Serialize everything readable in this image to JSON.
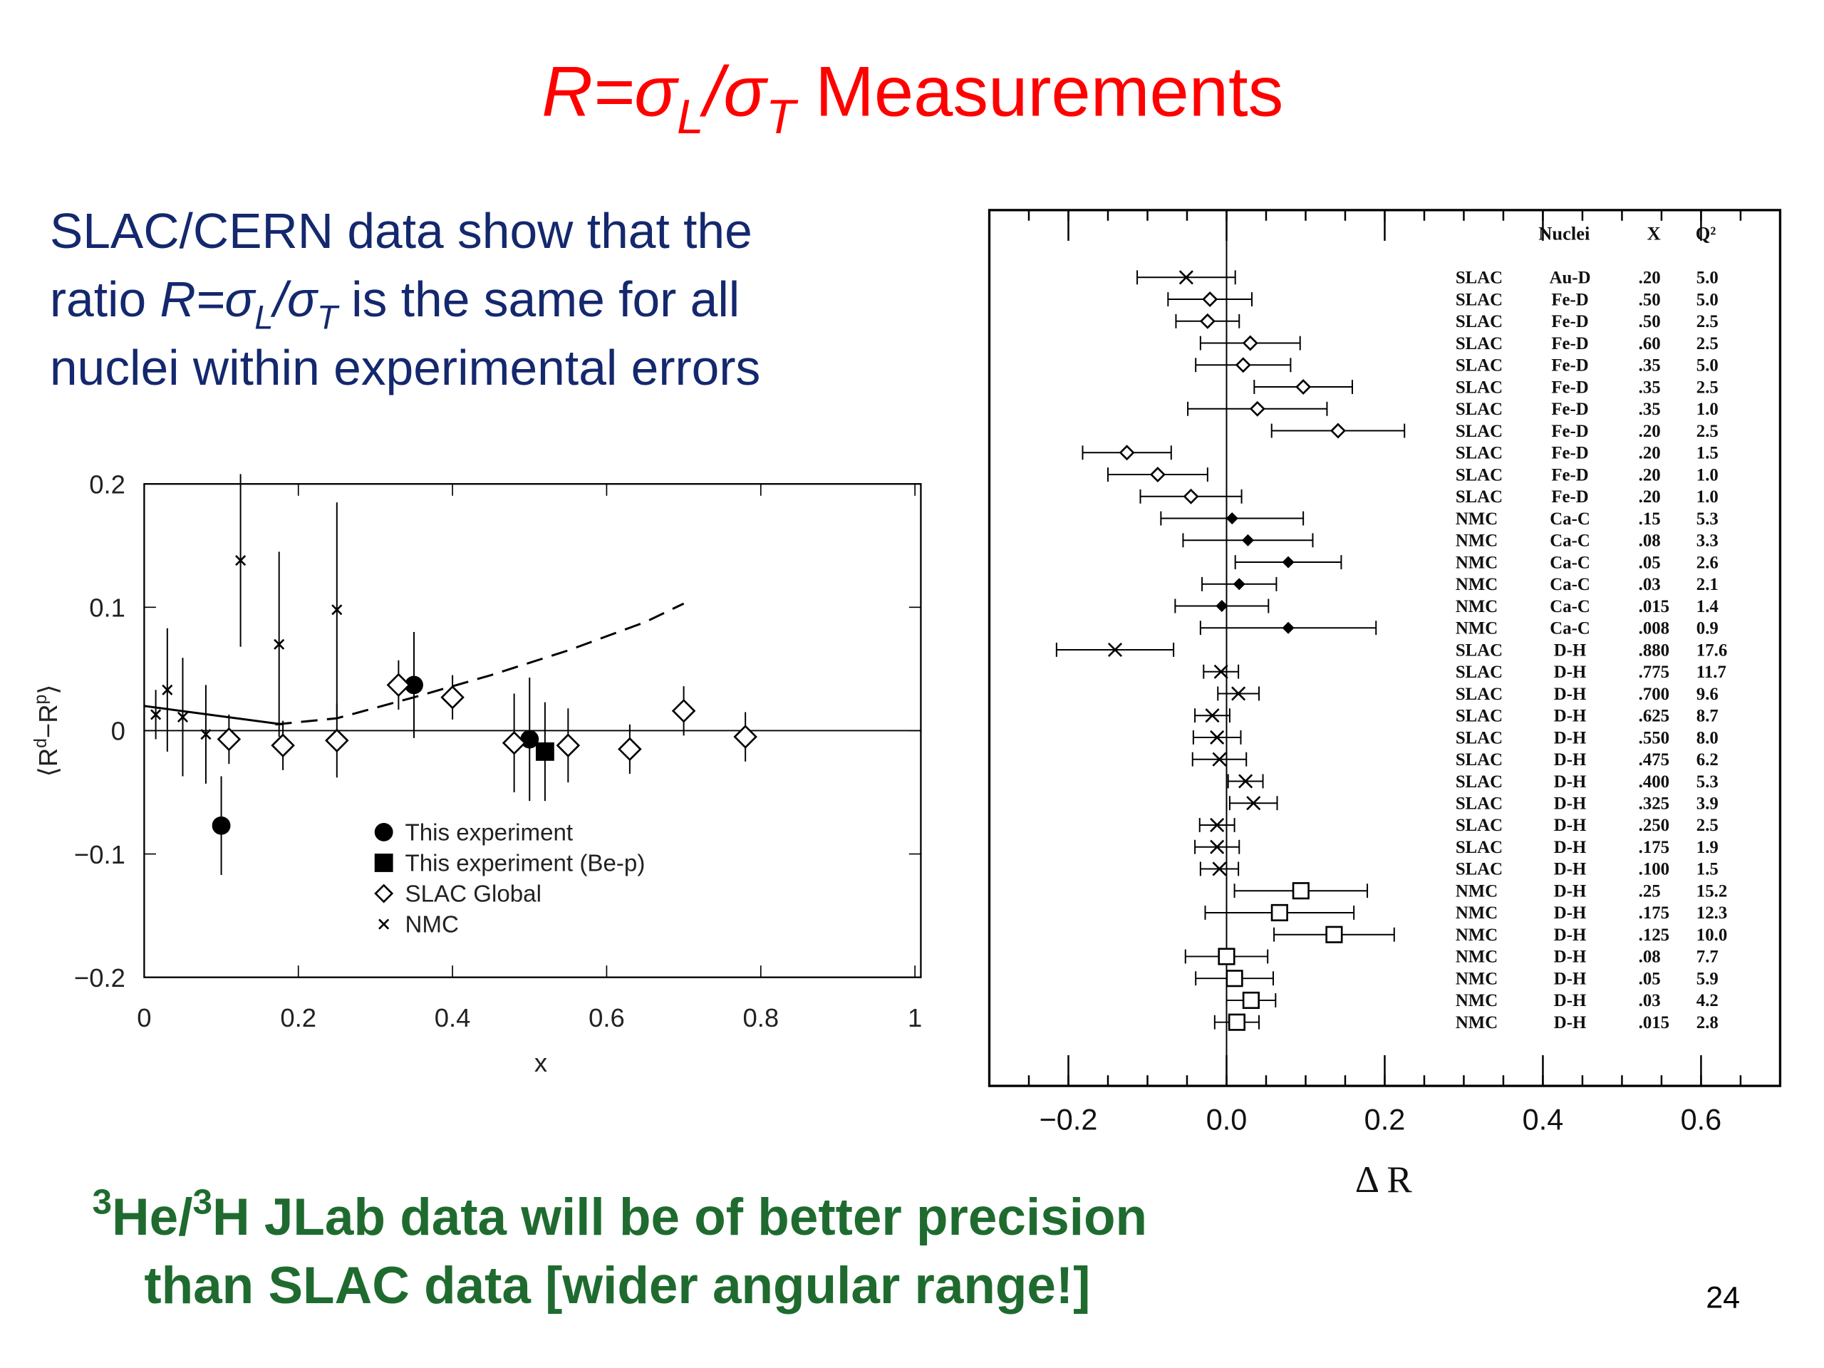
{
  "slide": {
    "title": [
      {
        "text": "R=σ",
        "italic": true
      },
      {
        "text": "L",
        "italic": true,
        "sub": true
      },
      {
        "text": "/σ",
        "italic": true
      },
      {
        "text": "T",
        "italic": true,
        "sub": true
      },
      {
        "text": " Measurements"
      }
    ],
    "body": [
      [
        {
          "text": "SLAC/CERN data show that the"
        }
      ],
      [
        {
          "text": "ratio "
        },
        {
          "text": "R=σ",
          "italic": true
        },
        {
          "text": "L",
          "italic": true,
          "sub": true
        },
        {
          "text": "/σ",
          "italic": true
        },
        {
          "text": "T",
          "italic": true,
          "sub": true
        },
        {
          "text": " is the same for all"
        }
      ],
      [
        {
          "text": "nuclei within experimental errors"
        }
      ]
    ],
    "note": [
      [
        {
          "text": "3",
          "sup": true
        },
        {
          "text": "He/"
        },
        {
          "text": "3",
          "sup": true
        },
        {
          "text": "H JLab data will be of better precision"
        }
      ],
      [
        {
          "text": "than SLAC data [wider angular range!]"
        }
      ]
    ],
    "page_number": "24"
  },
  "chart_data": [
    {
      "type": "scatter",
      "xlabel": [
        {
          "text": "x"
        }
      ],
      "ylabel": [
        {
          "text": "⟨R"
        },
        {
          "text": "d",
          "sup": true
        },
        {
          "text": "−R"
        },
        {
          "text": "p",
          "sup": true
        },
        {
          "text": "⟩"
        }
      ],
      "xlim": [
        0,
        1
      ],
      "ylim": [
        -0.2,
        0.2
      ],
      "xticks": [
        0,
        0.2,
        0.4,
        0.6,
        0.8,
        1
      ],
      "yticks": [
        {
          "value": -0.2,
          "label": "−0.2"
        },
        {
          "value": -0.1,
          "label": "−0.1"
        },
        0,
        0.1,
        0.2
      ],
      "legend": "lower-center",
      "series": [
        {
          "name": "This experiment",
          "marker": "circle",
          "color": "#000000",
          "x": [
            0.1,
            0.35,
            0.5
          ],
          "values": [
            -0.077,
            0.037,
            -0.007
          ],
          "errors": [
            0.04,
            0.043,
            0.05
          ]
        },
        {
          "name": "This experiment (Be-p)",
          "marker": "square",
          "color": "#000000",
          "x": [
            0.52
          ],
          "values": [
            -0.017
          ],
          "errors": [
            0.04
          ]
        },
        {
          "name": "SLAC Global",
          "marker": "diamond",
          "color": "#000000",
          "x": [
            0.11,
            0.18,
            0.25,
            0.33,
            0.4,
            0.48,
            0.55,
            0.63,
            0.7,
            0.78
          ],
          "values": [
            -0.007,
            -0.012,
            -0.008,
            0.037,
            0.027,
            -0.01,
            -0.012,
            -0.015,
            0.016,
            -0.005
          ],
          "errors": [
            0.02,
            0.02,
            0.03,
            0.02,
            0.018,
            0.04,
            0.03,
            0.02,
            0.02,
            0.02
          ]
        },
        {
          "name": "NMC",
          "marker": "cross",
          "color": "#000000",
          "x": [
            0.015,
            0.03,
            0.05,
            0.08,
            0.125,
            0.175,
            0.25
          ],
          "values": [
            0.013,
            0.033,
            0.011,
            -0.003,
            0.138,
            0.07,
            0.098
          ],
          "errors": [
            0.02,
            0.05,
            0.048,
            0.04,
            0.07,
            0.075,
            0.087
          ]
        }
      ],
      "curves": [
        {
          "dashed": false,
          "x": [
            0,
            0.18
          ],
          "values": [
            0.02,
            0.005
          ]
        },
        {
          "dashed": true,
          "x": [
            0.17,
            0.25,
            0.35,
            0.45,
            0.55,
            0.65,
            0.7
          ],
          "values": [
            0.005,
            0.01,
            0.027,
            0.045,
            0.065,
            0.088,
            0.103
          ]
        }
      ]
    },
    {
      "type": "errorbar",
      "xlabel": "Δ R",
      "xlim": [
        -0.3,
        0.7
      ],
      "xticks": [
        {
          "value": -0.2,
          "label": "−0.2"
        },
        {
          "value": 0,
          "label": "0.0"
        },
        0.2,
        0.4,
        0.6
      ],
      "columns": [
        "Nuclei",
        "X",
        "Q²"
      ],
      "rows": [
        {
          "lab": "SLAC",
          "nuclei": "Au-D",
          "x": ".20",
          "q2": "5.0",
          "value": -0.051,
          "error": 0.062,
          "marker": "x"
        },
        {
          "lab": "SLAC",
          "nuclei": "Fe-D",
          "x": ".50",
          "q2": "5.0",
          "value": -0.021,
          "error": 0.053,
          "marker": "diamond"
        },
        {
          "lab": "SLAC",
          "nuclei": "Fe-D",
          "x": ".50",
          "q2": "2.5",
          "value": -0.024,
          "error": 0.04,
          "marker": "diamond"
        },
        {
          "lab": "SLAC",
          "nuclei": "Fe-D",
          "x": ".60",
          "q2": "2.5",
          "value": 0.03,
          "error": 0.063,
          "marker": "diamond"
        },
        {
          "lab": "SLAC",
          "nuclei": "Fe-D",
          "x": ".35",
          "q2": "5.0",
          "value": 0.021,
          "error": 0.06,
          "marker": "diamond"
        },
        {
          "lab": "SLAC",
          "nuclei": "Fe-D",
          "x": ".35",
          "q2": "2.5",
          "value": 0.097,
          "error": 0.062,
          "marker": "diamond"
        },
        {
          "lab": "SLAC",
          "nuclei": "Fe-D",
          "x": ".35",
          "q2": "1.0",
          "value": 0.039,
          "error": 0.088,
          "marker": "diamond"
        },
        {
          "lab": "SLAC",
          "nuclei": "Fe-D",
          "x": ".20",
          "q2": "2.5",
          "value": 0.141,
          "error": 0.084,
          "marker": "diamond"
        },
        {
          "lab": "SLAC",
          "nuclei": "Fe-D",
          "x": ".20",
          "q2": "1.5",
          "value": -0.126,
          "error": 0.056,
          "marker": "diamond"
        },
        {
          "lab": "SLAC",
          "nuclei": "Fe-D",
          "x": ".20",
          "q2": "1.0",
          "value": -0.087,
          "error": 0.063,
          "marker": "diamond"
        },
        {
          "lab": "SLAC",
          "nuclei": "Fe-D",
          "x": ".20",
          "q2": "1.0",
          "value": -0.045,
          "error": 0.064,
          "marker": "diamond"
        },
        {
          "lab": "NMC",
          "nuclei": "Ca-C",
          "x": ".15",
          "q2": "5.3",
          "value": 0.007,
          "error": 0.09,
          "marker": "dot"
        },
        {
          "lab": "NMC",
          "nuclei": "Ca-C",
          "x": ".08",
          "q2": "3.3",
          "value": 0.027,
          "error": 0.082,
          "marker": "dot"
        },
        {
          "lab": "NMC",
          "nuclei": "Ca-C",
          "x": ".05",
          "q2": "2.6",
          "value": 0.078,
          "error": 0.067,
          "marker": "dot"
        },
        {
          "lab": "NMC",
          "nuclei": "Ca-C",
          "x": ".03",
          "q2": "2.1",
          "value": 0.016,
          "error": 0.047,
          "marker": "dot"
        },
        {
          "lab": "NMC",
          "nuclei": "Ca-C",
          "x": ".015",
          "q2": "1.4",
          "value": -0.006,
          "error": 0.059,
          "marker": "dot"
        },
        {
          "lab": "NMC",
          "nuclei": "Ca-C",
          "x": ".008",
          "q2": "0.9",
          "value": 0.078,
          "error": 0.111,
          "marker": "dot"
        },
        {
          "lab": "SLAC",
          "nuclei": "D-H",
          "x": ".880",
          "q2": "17.6",
          "value": -0.141,
          "error": 0.074,
          "marker": "x"
        },
        {
          "lab": "SLAC",
          "nuclei": "D-H",
          "x": ".775",
          "q2": "11.7",
          "value": -0.007,
          "error": 0.022,
          "marker": "x"
        },
        {
          "lab": "SLAC",
          "nuclei": "D-H",
          "x": ".700",
          "q2": "9.6",
          "value": 0.015,
          "error": 0.026,
          "marker": "x"
        },
        {
          "lab": "SLAC",
          "nuclei": "D-H",
          "x": ".625",
          "q2": "8.7",
          "value": -0.018,
          "error": 0.022,
          "marker": "x"
        },
        {
          "lab": "SLAC",
          "nuclei": "D-H",
          "x": ".550",
          "q2": "8.0",
          "value": -0.012,
          "error": 0.03,
          "marker": "x"
        },
        {
          "lab": "SLAC",
          "nuclei": "D-H",
          "x": ".475",
          "q2": "6.2",
          "value": -0.009,
          "error": 0.034,
          "marker": "x"
        },
        {
          "lab": "SLAC",
          "nuclei": "D-H",
          "x": ".400",
          "q2": "5.3",
          "value": 0.024,
          "error": 0.022,
          "marker": "x"
        },
        {
          "lab": "SLAC",
          "nuclei": "D-H",
          "x": ".325",
          "q2": "3.9",
          "value": 0.034,
          "error": 0.03,
          "marker": "x"
        },
        {
          "lab": "SLAC",
          "nuclei": "D-H",
          "x": ".250",
          "q2": "2.5",
          "value": -0.012,
          "error": 0.022,
          "marker": "x"
        },
        {
          "lab": "SLAC",
          "nuclei": "D-H",
          "x": ".175",
          "q2": "1.9",
          "value": -0.012,
          "error": 0.028,
          "marker": "x"
        },
        {
          "lab": "SLAC",
          "nuclei": "D-H",
          "x": ".100",
          "q2": "1.5",
          "value": -0.009,
          "error": 0.024,
          "marker": "x"
        },
        {
          "lab": "NMC",
          "nuclei": "D-H",
          "x": ".25",
          "q2": "15.2",
          "value": 0.094,
          "error": 0.084,
          "marker": "square"
        },
        {
          "lab": "NMC",
          "nuclei": "D-H",
          "x": ".175",
          "q2": "12.3",
          "value": 0.067,
          "error": 0.094,
          "marker": "square"
        },
        {
          "lab": "NMC",
          "nuclei": "D-H",
          "x": ".125",
          "q2": "10.0",
          "value": 0.136,
          "error": 0.076,
          "marker": "square"
        },
        {
          "lab": "NMC",
          "nuclei": "D-H",
          "x": ".08",
          "q2": "7.7",
          "value": 0,
          "error": 0.052,
          "marker": "square"
        },
        {
          "lab": "NMC",
          "nuclei": "D-H",
          "x": ".05",
          "q2": "5.9",
          "value": 0.01,
          "error": 0.049,
          "marker": "square"
        },
        {
          "lab": "NMC",
          "nuclei": "D-H",
          "x": ".03",
          "q2": "4.2",
          "value": 0.031,
          "error": 0.031,
          "marker": "square"
        },
        {
          "lab": "NMC",
          "nuclei": "D-H",
          "x": ".015",
          "q2": "2.8",
          "value": 0.013,
          "error": 0.028,
          "marker": "square"
        }
      ]
    }
  ]
}
